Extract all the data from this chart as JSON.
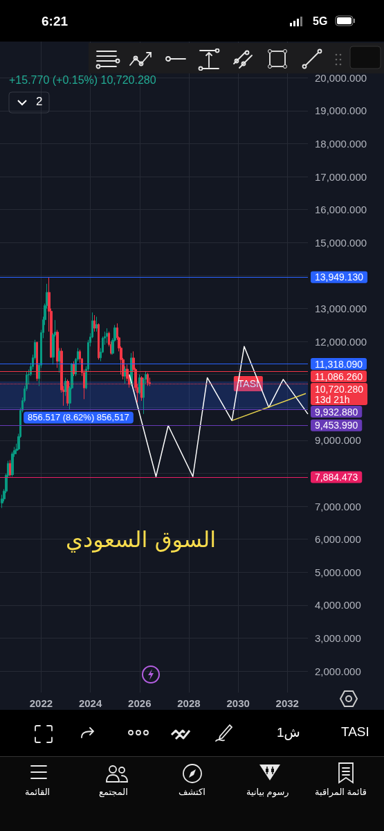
{
  "chart_data": {
    "type": "candlestick",
    "title": "السوق السعودي",
    "subtitle": "+15.770 (+0.15%) 10,720.280",
    "x": [
      "2020-06",
      "2020-07",
      "2020-08",
      "2020-09",
      "2020-10",
      "2020-11",
      "2020-12",
      "2021-01",
      "2021-02",
      "2021-03",
      "2021-04",
      "2021-05",
      "2021-06",
      "2021-07",
      "2021-08",
      "2021-09",
      "2021-10",
      "2021-11",
      "2021-12",
      "2022-01",
      "2022-02",
      "2022-03",
      "2022-04",
      "2022-05",
      "2022-06",
      "2022-07",
      "2022-08",
      "2022-09",
      "2022-10",
      "2022-11",
      "2022-12",
      "2023-01",
      "2023-02",
      "2023-03",
      "2023-04",
      "2023-05",
      "2023-06",
      "2023-07",
      "2023-08",
      "2023-09",
      "2023-10",
      "2023-11",
      "2023-12",
      "2024-01",
      "2024-02",
      "2024-03",
      "2024-04",
      "2024-05",
      "2024-06",
      "2024-07",
      "2024-08",
      "2024-09",
      "2024-10",
      "2024-11",
      "2024-12",
      "2025-01",
      "2025-02",
      "2025-03",
      "2025-04",
      "2025-05",
      "2025-06",
      "2025-07",
      "2025-08",
      "2025-09",
      "2025-10",
      "2025-11",
      "2025-12",
      "2026-01",
      "2026-02",
      "2026-03",
      "2026-04",
      "2026-05",
      "2026-06"
    ],
    "ohlc": [
      [
        7100,
        7350,
        6950,
        7224
      ],
      [
        7224,
        7520,
        7150,
        7459
      ],
      [
        7459,
        7990,
        7400,
        7942
      ],
      [
        7942,
        8380,
        7880,
        8299
      ],
      [
        8299,
        8400,
        7900,
        7958
      ],
      [
        7958,
        8650,
        7900,
        8590
      ],
      [
        8590,
        8800,
        8500,
        8690
      ],
      [
        8690,
        8900,
        8580,
        8735
      ],
      [
        8735,
        9200,
        8700,
        9115
      ],
      [
        9115,
        9980,
        9080,
        9908
      ],
      [
        9908,
        10300,
        9850,
        10205
      ],
      [
        10205,
        10650,
        10150,
        10565
      ],
      [
        10565,
        11100,
        10500,
        10984
      ],
      [
        10984,
        11150,
        10700,
        11004
      ],
      [
        11004,
        11350,
        10950,
        11240
      ],
      [
        11240,
        11600,
        11150,
        11505
      ],
      [
        11505,
        12050,
        11450,
        11971
      ],
      [
        11971,
        12000,
        10800,
        10873
      ],
      [
        10873,
        11350,
        10650,
        11282
      ],
      [
        11282,
        12350,
        11200,
        12271
      ],
      [
        12271,
        12750,
        12100,
        12660
      ],
      [
        12660,
        13150,
        12500,
        13090
      ],
      [
        13090,
        13750,
        13000,
        13490
      ],
      [
        13490,
        13949.13,
        12300,
        12918
      ],
      [
        12918,
        13000,
        11500,
        11523
      ],
      [
        11523,
        12250,
        11300,
        12202
      ],
      [
        12202,
        12650,
        12150,
        12283
      ],
      [
        12283,
        12350,
        11200,
        11405
      ],
      [
        11405,
        11800,
        11050,
        11709
      ],
      [
        11709,
        11800,
        10450,
        10530
      ],
      [
        10530,
        10650,
        10050,
        10478
      ],
      [
        10478,
        10900,
        10350,
        10793
      ],
      [
        10793,
        10850,
        10050,
        10129
      ],
      [
        10129,
        10650,
        9932.88,
        10590
      ],
      [
        10590,
        11350,
        10550,
        11307
      ],
      [
        11307,
        11400,
        10950,
        11014
      ],
      [
        11014,
        11500,
        10950,
        11459
      ],
      [
        11459,
        11800,
        11400,
        11694
      ],
      [
        11694,
        11750,
        11350,
        11472
      ],
      [
        11472,
        11500,
        10950,
        11055
      ],
      [
        11055,
        11150,
        10250,
        10590
      ],
      [
        10590,
        11250,
        10550,
        11164
      ],
      [
        11164,
        12050,
        11100,
        11967
      ],
      [
        11967,
        12250,
        11850,
        12136
      ],
      [
        12136,
        12880,
        12100,
        12630
      ],
      [
        12630,
        12800,
        12300,
        12401
      ],
      [
        12401,
        12750,
        12300,
        12515
      ],
      [
        12515,
        12550,
        11450,
        11503
      ],
      [
        11503,
        11800,
        11400,
        11680
      ],
      [
        11680,
        12150,
        11650,
        12102
      ],
      [
        12102,
        12300,
        11900,
        12150
      ],
      [
        12150,
        12400,
        11950,
        12251
      ],
      [
        12251,
        12300,
        11850,
        11910
      ],
      [
        11910,
        12000,
        11600,
        11642
      ],
      [
        11642,
        12100,
        11600,
        12036
      ],
      [
        12036,
        12500,
        12000,
        12416
      ],
      [
        12416,
        12550,
        12050,
        12112
      ],
      [
        12112,
        12150,
        11700,
        11800
      ],
      [
        11800,
        11850,
        11000,
        11450
      ],
      [
        11450,
        11500,
        10850,
        10950
      ],
      [
        10950,
        11250,
        10700,
        11160
      ],
      [
        11160,
        11300,
        10800,
        10880
      ],
      [
        10880,
        10950,
        10600,
        10700
      ],
      [
        10700,
        11650,
        10650,
        11500
      ],
      [
        11500,
        11700,
        11100,
        11150
      ],
      [
        11150,
        11200,
        10500,
        10600
      ],
      [
        10600,
        10700,
        10150,
        10450
      ],
      [
        10450,
        11000,
        10400,
        10900
      ],
      [
        10900,
        10950,
        10200,
        10300
      ],
      [
        10300,
        10900,
        9800,
        10850
      ],
      [
        10850,
        11100,
        10700,
        11000
      ],
      [
        11000,
        11050,
        10650,
        10750
      ],
      [
        10750,
        10900,
        10650,
        10720.28
      ]
    ],
    "colors": [
      "#089981",
      "#089981",
      "#089981",
      "#089981",
      "#f23645",
      "#089981",
      "#089981",
      "#089981",
      "#089981",
      "#089981",
      "#089981",
      "#089981",
      "#089981",
      "#089981",
      "#089981",
      "#089981",
      "#089981",
      "#f23645",
      "#089981",
      "#089981",
      "#089981",
      "#089981",
      "#089981",
      "#f23645",
      "#f23645",
      "#089981",
      "#089981",
      "#f23645",
      "#089981",
      "#f23645",
      "#f23645",
      "#089981",
      "#f23645",
      "#089981",
      "#089981",
      "#f23645",
      "#089981",
      "#089981",
      "#f23645",
      "#f23645",
      "#f23645",
      "#089981",
      "#089981",
      "#089981",
      "#089981",
      "#f23645",
      "#089981",
      "#f23645",
      "#089981",
      "#089981",
      "#089981",
      "#089981",
      "#f23645",
      "#f23645",
      "#089981",
      "#089981",
      "#f23645",
      "#f23645",
      "#f23645",
      "#f23645",
      "#089981",
      "#f23645",
      "#f23645",
      "#089981",
      "#f23645",
      "#f23645",
      "#f23645",
      "#089981",
      "#f23645",
      "#089981",
      "#089981",
      "#f23645",
      "#f23645"
    ],
    "series": [
      {
        "type": "line",
        "color": "#ffffff",
        "x": [
          "2025-08",
          "2026-09",
          "2027-03",
          "2028-03",
          "2028-10",
          "2029-10",
          "2030-04",
          "2031-04",
          "2031-11",
          "2032-11"
        ],
        "values": [
          11000,
          7900,
          9450,
          7900,
          10900,
          9600,
          11850,
          10000,
          10850,
          9800
        ]
      },
      {
        "type": "line",
        "color": "#e8d44d",
        "x": [
          "2029-10",
          "2032-10"
        ],
        "values": [
          9600,
          10420
        ]
      }
    ],
    "xlim": [
      "2020-05",
      "2032-11"
    ],
    "xticks": [
      "2022",
      "2024",
      "2026",
      "2028",
      "2030",
      "2032"
    ],
    "ylim": [
      1350,
      21100
    ],
    "yticks": [
      {
        "value": 2000,
        "label": "2,000.000"
      },
      {
        "value": 3000,
        "label": "3,000.000"
      },
      {
        "value": 4000,
        "label": "4,000.000"
      },
      {
        "value": 5000,
        "label": "5,000.000"
      },
      {
        "value": 6000,
        "label": "6,000.000"
      },
      {
        "value": 7000,
        "label": "7,000.000"
      },
      {
        "value": 8000,
        "label": null
      },
      {
        "value": 9000,
        "label": "9,000.000"
      },
      {
        "value": 10000,
        "label": null
      },
      {
        "value": 11000,
        "label": null
      },
      {
        "value": 12000,
        "label": "12,000.000"
      },
      {
        "value": 13000,
        "label": "13,000.000"
      },
      {
        "value": 14000,
        "label": null
      },
      {
        "value": 15000,
        "label": "15,000.000"
      },
      {
        "value": 16000,
        "label": "16,000.000"
      },
      {
        "value": 17000,
        "label": "17,000.000"
      },
      {
        "value": 18000,
        "label": "18,000.000"
      },
      {
        "value": 19000,
        "label": "19,000.000"
      },
      {
        "value": 20000,
        "label": "20,000.000"
      }
    ],
    "grid": true,
    "ref_lines": [
      {
        "axis": "y",
        "value": 13949.13,
        "label": "13,949.130",
        "color": "#2962ff"
      },
      {
        "axis": "y",
        "value": 11318.09,
        "label": "11,318.090",
        "color": "#2962ff"
      },
      {
        "axis": "y",
        "value": 11086.26,
        "label": "11,086.260",
        "color": "#f23645"
      },
      {
        "axis": "y",
        "value": 10720.28,
        "label": "10,720.280\n13d 21h",
        "color": "#f23645",
        "line_style": "dotted"
      },
      {
        "axis": "y",
        "value": 9932.88,
        "label": "9,932.880",
        "color": "#673ab7"
      },
      {
        "axis": "y",
        "value": 9453.99,
        "label": "9,453.990",
        "color": "#673ab7"
      },
      {
        "axis": "y",
        "value": 7884.473,
        "label": "7,884.473",
        "color": "#e91e63"
      }
    ],
    "bands": [
      {
        "axis": "y",
        "from": 9932.88,
        "to": 10789.397,
        "label": "856.517 (8.62%) 856,517",
        "color": "#2962ff"
      }
    ],
    "annotations": [
      {
        "text": "TASI",
        "x": "2030-06",
        "y": 10720.28
      },
      "6:21",
      "5G",
      "2",
      "TASI",
      "1ش",
      "قائمة المراقبة",
      "رسوم بيانية",
      "اكتشف",
      "المجتمع",
      "القائمة"
    ]
  }
}
